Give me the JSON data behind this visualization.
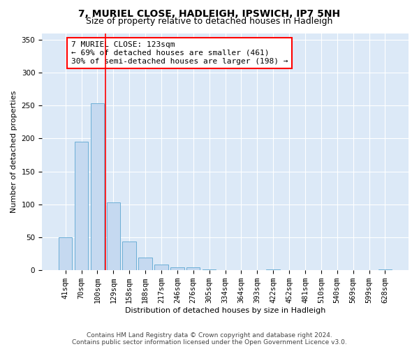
{
  "title1": "7, MURIEL CLOSE, HADLEIGH, IPSWICH, IP7 5NH",
  "title2": "Size of property relative to detached houses in Hadleigh",
  "xlabel": "Distribution of detached houses by size in Hadleigh",
  "ylabel": "Number of detached properties",
  "footer1": "Contains HM Land Registry data © Crown copyright and database right 2024.",
  "footer2": "Contains public sector information licensed under the Open Government Licence v3.0.",
  "annotation_lines": [
    "7 MURIEL CLOSE: 123sqm",
    "← 69% of detached houses are smaller (461)",
    "30% of semi-detached houses are larger (198) →"
  ],
  "bar_labels": [
    "41sqm",
    "70sqm",
    "100sqm",
    "129sqm",
    "158sqm",
    "188sqm",
    "217sqm",
    "246sqm",
    "276sqm",
    "305sqm",
    "334sqm",
    "364sqm",
    "393sqm",
    "422sqm",
    "452sqm",
    "481sqm",
    "510sqm",
    "540sqm",
    "569sqm",
    "599sqm",
    "628sqm"
  ],
  "bar_values": [
    50,
    195,
    253,
    103,
    44,
    19,
    9,
    4,
    4,
    1,
    0,
    0,
    0,
    1,
    0,
    0,
    0,
    0,
    0,
    0,
    1
  ],
  "bar_color": "#c5d9f0",
  "bar_edgecolor": "#6baed6",
  "vline_color": "red",
  "ylim": [
    0,
    360
  ],
  "yticks": [
    0,
    50,
    100,
    150,
    200,
    250,
    300,
    350
  ],
  "plot_bg_color": "#dce9f7",
  "annotation_box_color": "white",
  "annotation_box_edgecolor": "red",
  "title1_fontsize": 10,
  "title2_fontsize": 9,
  "axis_label_fontsize": 8,
  "tick_fontsize": 7.5,
  "footer_fontsize": 6.5,
  "ann_fontsize": 8
}
